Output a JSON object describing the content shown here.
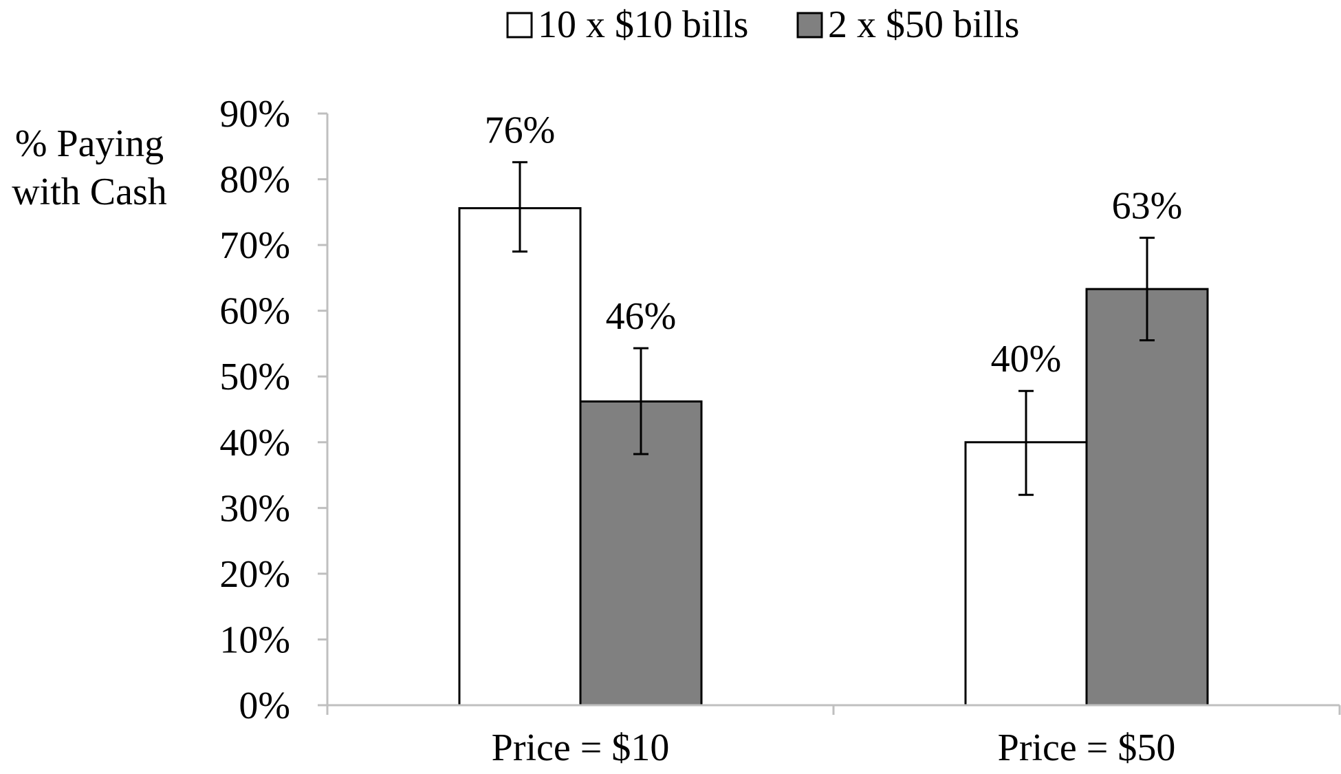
{
  "chart_data": {
    "type": "bar",
    "title": "",
    "ylabel_lines": [
      "% Paying",
      "with Cash"
    ],
    "xlabel": "",
    "categories": [
      "Price = $10",
      "Price = $50"
    ],
    "ylim": [
      0,
      90
    ],
    "yticks": [
      0,
      10,
      20,
      30,
      40,
      50,
      60,
      70,
      80,
      90
    ],
    "ytick_labels": [
      "0%",
      "10%",
      "20%",
      "30%",
      "40%",
      "50%",
      "60%",
      "70%",
      "80%",
      "90%"
    ],
    "grid": false,
    "legend_position": "top-center",
    "series": [
      {
        "name": "10 x $10 bills",
        "color": "#ffffff",
        "values": [
          75.6,
          40.0
        ],
        "value_labels": [
          "76%",
          "40%"
        ],
        "error_low": [
          69.0,
          32.0
        ],
        "error_high": [
          82.6,
          47.8
        ]
      },
      {
        "name": "2 x $50 bills",
        "color": "#808080",
        "values": [
          46.2,
          63.3
        ],
        "value_labels": [
          "46%",
          "63%"
        ],
        "error_low": [
          38.2,
          55.5
        ],
        "error_high": [
          54.3,
          71.1
        ]
      }
    ]
  }
}
